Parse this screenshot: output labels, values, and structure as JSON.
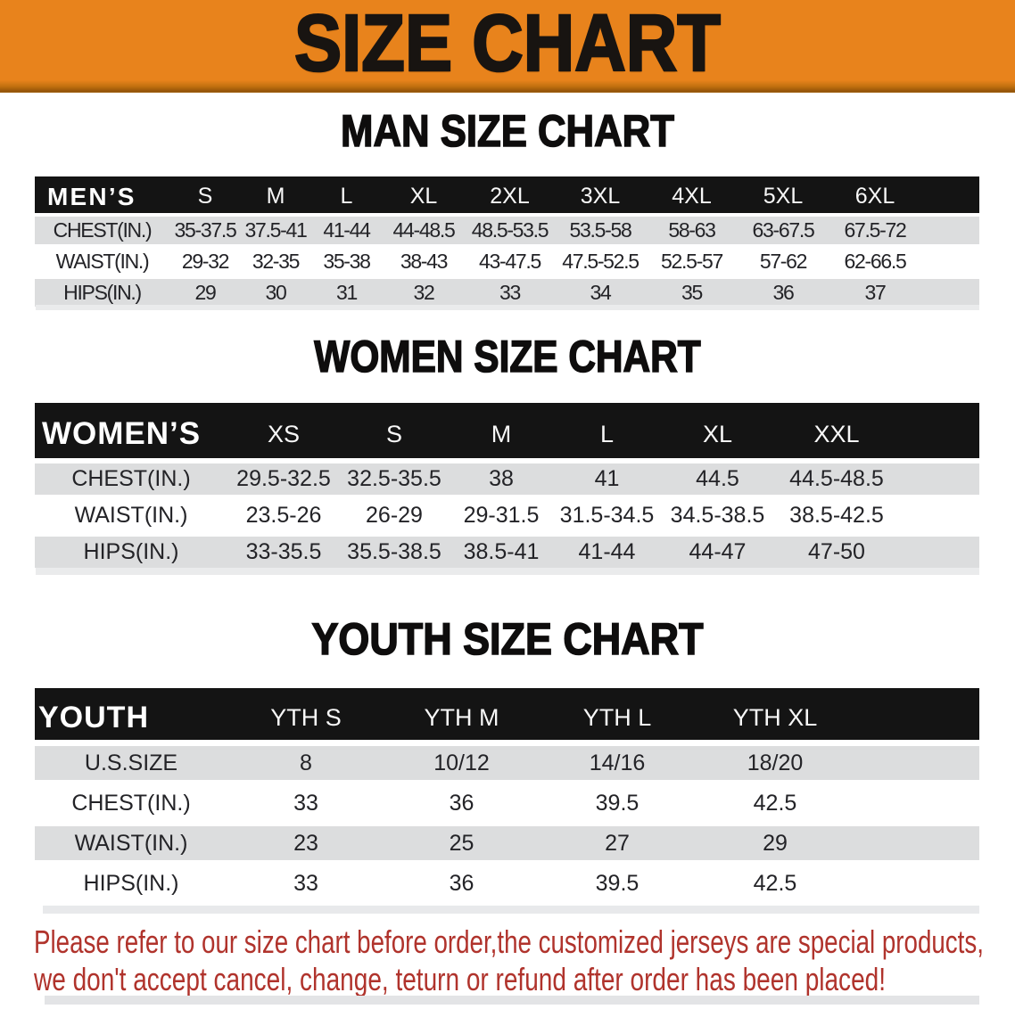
{
  "banner": {
    "title": "SIZE CHART"
  },
  "sections": [
    {
      "heading": "MAN SIZE CHART",
      "table": {
        "name": "MEN’S",
        "columns": [
          "S",
          "M",
          "L",
          "XL",
          "2XL",
          "3XL",
          "4XL",
          "5XL",
          "6XL"
        ],
        "rows": [
          {
            "label": "CHEST(IN.)",
            "values": [
              "35-37.5",
              "37.5-41",
              "41-44",
              "44-48.5",
              "48.5-53.5",
              "53.5-58",
              "58-63",
              "63-67.5",
              "67.5-72"
            ]
          },
          {
            "label": "WAIST(IN.)",
            "values": [
              "29-32",
              "32-35",
              "35-38",
              "38-43",
              "43-47.5",
              "47.5-52.5",
              "52.5-57",
              "57-62",
              "62-66.5"
            ]
          },
          {
            "label": "HIPS(IN.)",
            "values": [
              "29",
              "30",
              "31",
              "32",
              "33",
              "34",
              "35",
              "36",
              "37"
            ]
          }
        ]
      }
    },
    {
      "heading": "WOMEN SIZE CHART",
      "table": {
        "name": "WOMEN’S",
        "columns": [
          "XS",
          "S",
          "M",
          "L",
          "XL",
          "XXL"
        ],
        "rows": [
          {
            "label": "CHEST(IN.)",
            "values": [
              "29.5-32.5",
              "32.5-35.5",
              "38",
              "41",
              "44.5",
              "44.5-48.5"
            ]
          },
          {
            "label": "WAIST(IN.)",
            "values": [
              "23.5-26",
              "26-29",
              "29-31.5",
              "31.5-34.5",
              "34.5-38.5",
              "38.5-42.5"
            ]
          },
          {
            "label": "HIPS(IN.)",
            "values": [
              "33-35.5",
              "35.5-38.5",
              "38.5-41",
              "41-44",
              "44-47",
              "47-50"
            ]
          }
        ]
      }
    },
    {
      "heading": "YOUTH SIZE CHART",
      "table": {
        "name": "YOUTH",
        "columns": [
          "YTH S",
          "YTH M",
          "YTH L",
          "YTH XL"
        ],
        "rows": [
          {
            "label": "U.S.SIZE",
            "values": [
              "8",
              "10/12",
              "14/16",
              "18/20"
            ]
          },
          {
            "label": "CHEST(IN.)",
            "values": [
              "33",
              "36",
              "39.5",
              "42.5"
            ]
          },
          {
            "label": "WAIST(IN.)",
            "values": [
              "23",
              "25",
              "27",
              "29"
            ]
          },
          {
            "label": "HIPS(IN.)",
            "values": [
              "33",
              "36",
              "39.5",
              "42.5"
            ]
          }
        ]
      }
    }
  ],
  "notice": {
    "line1": "Please refer to our size chart before order,the customized jerseys are special products,",
    "line2": "we don't accept cancel, change, teturn or refund after order has been placed!"
  },
  "colors": {
    "banner_bg": "#e8831c",
    "table_bar_bg": "#141414",
    "band_gray": "#dcddde",
    "notice_red": "#b0332c"
  }
}
